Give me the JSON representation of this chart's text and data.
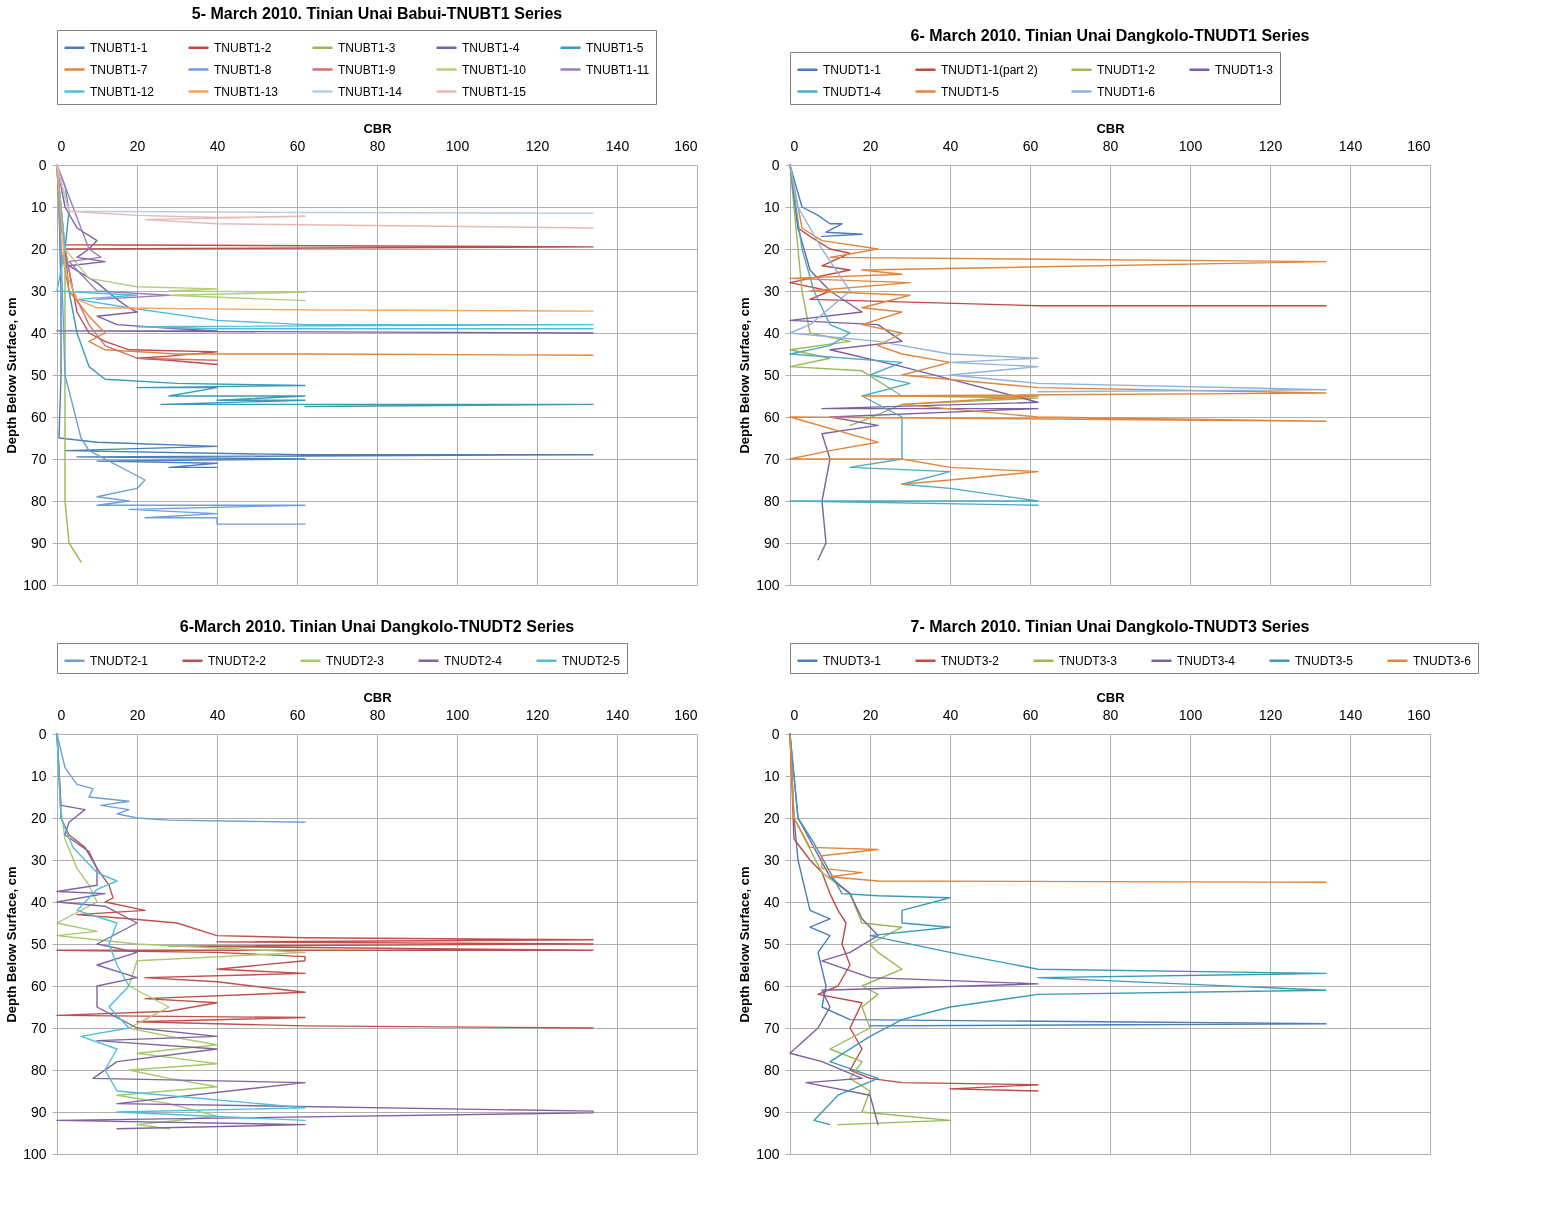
{
  "chart_data": [
    {
      "type": "line",
      "title": "5- March 2010. Tinian Unai Babui-TNUBT1 Series",
      "xlabel": "CBR",
      "ylabel": "Depth Below Surface, cm",
      "xlim": [
        0,
        160
      ],
      "xticks": [
        0,
        20,
        40,
        60,
        80,
        100,
        120,
        140,
        160
      ],
      "ylim": [
        100,
        0
      ],
      "yticks": [
        0,
        10,
        20,
        30,
        40,
        50,
        60,
        70,
        80,
        90,
        100
      ],
      "grid": true,
      "legend": "top",
      "series": [
        {
          "name": "TNUBT1-1",
          "color": "#4a7ebb",
          "x": [
            0,
            0.5,
            1,
            1,
            0.5,
            10,
            40,
            2,
            62,
            134,
            5,
            62,
            10,
            40,
            28,
            40
          ],
          "values": [
            0,
            10,
            30,
            50,
            65,
            66,
            67,
            68,
            69,
            69,
            69.5,
            70,
            70.5,
            71,
            72,
            72
          ]
        },
        {
          "name": "TNUBT1-2",
          "color": "#be4b48",
          "x": [
            0,
            1,
            2,
            134,
            2,
            3,
            5,
            8,
            12,
            18,
            40,
            28,
            20,
            28,
            40
          ],
          "values": [
            0,
            15,
            19,
            19.5,
            20,
            25,
            35,
            40,
            42,
            44,
            44.5,
            45.5,
            46,
            46.5,
            47.5
          ]
        },
        {
          "name": "TNUBT1-3",
          "color": "#98b954",
          "x": [
            0,
            1,
            2,
            2,
            2,
            2,
            3,
            6
          ],
          "values": [
            0,
            10,
            20,
            40,
            60,
            80,
            90,
            94.5
          ]
        },
        {
          "name": "TNUBT1-4",
          "color": "#7d60a0",
          "x": [
            0,
            2,
            5,
            10,
            8,
            5,
            12,
            3,
            10,
            15,
            18,
            20,
            10,
            15,
            30,
            40,
            0,
            134
          ],
          "values": [
            0,
            10,
            15,
            18,
            20,
            22,
            23,
            24,
            28,
            32,
            34,
            35,
            36,
            38,
            39,
            39.5,
            39.5,
            40
          ]
        },
        {
          "name": "TNUBT1-5",
          "color": "#3b9ab8",
          "x": [
            0,
            2,
            3,
            2,
            3,
            5,
            8,
            12,
            30,
            62,
            20,
            40,
            28,
            62,
            40,
            62,
            26,
            134,
            62
          ],
          "values": [
            0,
            5,
            11,
            20,
            30,
            40,
            48,
            51,
            52,
            52.5,
            53,
            53,
            55,
            55,
            56,
            56,
            57,
            57,
            57.5
          ]
        },
        {
          "name": "TNUBT1-7",
          "color": "#e0863e",
          "x": [
            0,
            1,
            3,
            8,
            10,
            12,
            8,
            12,
            30,
            62,
            134
          ],
          "values": [
            0,
            20,
            30,
            36,
            38,
            40,
            42,
            44,
            45,
            45,
            45.3
          ]
        },
        {
          "name": "TNUBT1-8",
          "color": "#6f9fd8",
          "x": [
            0,
            1,
            2,
            6,
            8,
            22,
            20,
            10,
            18,
            10,
            62,
            18,
            40,
            22,
            40,
            40,
            62
          ],
          "values": [
            0,
            20,
            50,
            65,
            68,
            75,
            77,
            79,
            80,
            81,
            81,
            82,
            83,
            84,
            84,
            85.5,
            85.5
          ]
        },
        {
          "name": "TNUBT1-9",
          "color": "#d0726f",
          "x": [
            0,
            2,
            4,
            8,
            12,
            20,
            40
          ],
          "values": [
            0,
            20,
            30,
            38,
            43,
            46,
            46.5
          ]
        },
        {
          "name": "TNUBT1-10",
          "color": "#b3cf80",
          "x": [
            0,
            2,
            8,
            20,
            40,
            28,
            62,
            28,
            62
          ],
          "values": [
            0,
            20,
            27,
            29,
            29.5,
            30,
            30.3,
            31,
            32.3
          ]
        },
        {
          "name": "TNUBT1-11",
          "color": "#9a7fba",
          "x": [
            0,
            8,
            11,
            3,
            5,
            10,
            28,
            10
          ],
          "values": [
            0,
            20,
            22,
            23,
            25,
            30,
            31,
            32
          ]
        },
        {
          "name": "TNUBT1-12",
          "color": "#4bc0dc",
          "x": [
            0,
            2,
            0,
            20,
            5,
            18,
            40,
            62,
            134,
            20,
            40,
            134
          ],
          "values": [
            0,
            20,
            30,
            31,
            32,
            34,
            37,
            38,
            38,
            38.5,
            39,
            39
          ]
        },
        {
          "name": "TNUBT1-13",
          "color": "#f9a35d",
          "x": [
            0,
            2,
            5,
            10,
            62,
            134
          ],
          "values": [
            0,
            25,
            32,
            34,
            34.5,
            34.8
          ]
        },
        {
          "name": "TNUBT1-14",
          "color": "#b9cde5",
          "x": [
            0,
            2,
            3,
            62,
            134
          ],
          "values": [
            0,
            8,
            11,
            11.3,
            11.5
          ]
        },
        {
          "name": "TNUBT1-15",
          "color": "#e6b9b8",
          "x": [
            0,
            3,
            20,
            40,
            62,
            22,
            40,
            134
          ],
          "values": [
            0,
            11,
            12,
            12.5,
            12.2,
            13,
            14,
            15
          ]
        }
      ]
    },
    {
      "type": "line",
      "title": "6- March 2010. Tinian Unai Dangkolo-TNUDT1 Series",
      "xlabel": "CBR",
      "ylabel": "Depth Below Surface, cm",
      "xlim": [
        0,
        160
      ],
      "xticks": [
        0,
        20,
        40,
        60,
        80,
        100,
        120,
        140,
        160
      ],
      "ylim": [
        100,
        0
      ],
      "yticks": [
        0,
        10,
        20,
        30,
        40,
        50,
        60,
        70,
        80,
        90,
        100
      ],
      "grid": true,
      "legend": "top",
      "series": [
        {
          "name": "TNUDT1-1",
          "color": "#4a7ebb",
          "x": [
            0,
            3,
            7,
            10,
            13,
            9,
            18,
            8
          ],
          "values": [
            0,
            10,
            12,
            14,
            14,
            16,
            16.5,
            17
          ]
        },
        {
          "name": "TNUDT1-1(part 2)",
          "color": "#be4b48",
          "x": [
            0,
            2,
            5,
            10,
            15,
            8,
            15,
            0,
            10,
            5,
            62,
            134
          ],
          "values": [
            0,
            15,
            17,
            20,
            21,
            24,
            25,
            28,
            30,
            32,
            33.5,
            33.5
          ]
        },
        {
          "name": "TNUDT1-2",
          "color": "#98b954",
          "x": [
            0,
            1,
            2,
            3,
            5,
            15,
            0,
            10,
            0,
            18,
            28,
            62,
            28,
            18,
            15
          ],
          "values": [
            0,
            10,
            20,
            30,
            40,
            42,
            44,
            46,
            48,
            49,
            55,
            55.5,
            57,
            61,
            62
          ]
        },
        {
          "name": "TNUDT1-3",
          "color": "#7d60a0",
          "x": [
            0,
            2,
            5,
            10,
            18,
            0,
            22,
            28,
            10,
            28,
            62,
            8,
            62,
            10,
            22,
            8,
            10,
            8,
            9,
            7
          ],
          "values": [
            0,
            15,
            25,
            30,
            35,
            37,
            38,
            42,
            44,
            48,
            56.5,
            58,
            58,
            60,
            62,
            64,
            70,
            80,
            90,
            94
          ]
        },
        {
          "name": "TNUDT1-4",
          "color": "#4bacc6",
          "x": [
            0,
            3,
            6,
            10,
            15,
            10,
            0,
            28,
            20,
            30,
            18,
            28,
            28,
            15,
            40,
            28,
            40,
            62,
            0,
            62
          ],
          "values": [
            0,
            20,
            30,
            38,
            40,
            43,
            45,
            47,
            50,
            52,
            55,
            60,
            70,
            72,
            73,
            76,
            77,
            80,
            80,
            81
          ]
        },
        {
          "name": "TNUDT1-5",
          "color": "#e0863e",
          "x": [
            0,
            3,
            8,
            22,
            10,
            134,
            18,
            28,
            0,
            30,
            5,
            30,
            18,
            28,
            18,
            28,
            22,
            28,
            40,
            28,
            62,
            134,
            18,
            62,
            28,
            62,
            134,
            0,
            22,
            10,
            0,
            28,
            40,
            62,
            40,
            28
          ],
          "values": [
            0,
            15,
            18,
            20,
            22,
            23,
            25,
            26,
            27,
            28,
            30,
            31,
            34,
            35,
            38,
            40,
            43,
            45,
            47,
            50,
            53,
            54.3,
            55,
            55,
            57,
            60,
            61,
            60,
            66,
            68,
            70,
            70,
            72,
            73,
            75,
            76
          ]
        },
        {
          "name": "TNUDT1-6",
          "color": "#93b3dc",
          "x": [
            0,
            2,
            8,
            15,
            5,
            0,
            22,
            40,
            62,
            40,
            62,
            40,
            62,
            134,
            62
          ],
          "values": [
            0,
            10,
            20,
            30,
            38,
            40,
            42,
            45,
            46,
            47,
            48,
            50,
            52,
            53.5,
            54
          ]
        }
      ]
    },
    {
      "type": "line",
      "title": "6-March 2010. Tinian Unai Dangkolo-TNUDT2 Series",
      "xlabel": "CBR",
      "ylabel": "Depth Below Surface, cm",
      "xlim": [
        0,
        160
      ],
      "xticks": [
        0,
        20,
        40,
        60,
        80,
        100,
        120,
        140,
        160
      ],
      "ylim": [
        100,
        0
      ],
      "yticks": [
        0,
        10,
        20,
        30,
        40,
        50,
        60,
        70,
        80,
        90,
        100
      ],
      "grid": true,
      "legend": "top",
      "series": [
        {
          "name": "TNUDT2-1",
          "color": "#6f9fd8",
          "x": [
            0,
            2,
            5,
            9,
            8,
            18,
            11,
            18,
            15,
            20,
            28,
            62
          ],
          "values": [
            0,
            8,
            12,
            13,
            15,
            16,
            17,
            18,
            19,
            20,
            20.5,
            21
          ]
        },
        {
          "name": "TNUDT2-2",
          "color": "#c0504d",
          "x": [
            0,
            1,
            3,
            7,
            10,
            13,
            14,
            12,
            22,
            5,
            18,
            30,
            40,
            62,
            134,
            40,
            134,
            28,
            134,
            0,
            40,
            62,
            62,
            40,
            62,
            22,
            40,
            62,
            22,
            40,
            28,
            0,
            62,
            20,
            62,
            134
          ],
          "values": [
            0,
            20,
            24,
            27,
            32,
            36,
            39,
            40,
            42,
            43,
            44,
            45,
            48,
            48.5,
            49,
            49.5,
            50,
            50.5,
            51.5,
            51.5,
            52,
            53,
            54,
            56,
            57,
            58,
            59,
            61.5,
            63,
            64,
            66,
            67,
            67.5,
            68.5,
            69.5,
            70
          ]
        },
        {
          "name": "TNUDT2-3",
          "color": "#a6c96a",
          "x": [
            0,
            1,
            2,
            5,
            8,
            10,
            0,
            10,
            0,
            20,
            62,
            20,
            18,
            28,
            18,
            28,
            40,
            20,
            28,
            40,
            18,
            28,
            40,
            15,
            28,
            40,
            20,
            28
          ],
          "values": [
            0,
            18,
            25,
            32,
            36,
            40,
            45,
            47,
            48,
            50,
            52,
            54,
            60,
            65,
            70,
            72,
            74,
            76,
            77,
            78.5,
            80,
            82,
            84,
            86,
            88,
            91,
            93,
            94
          ]
        },
        {
          "name": "TNUDT2-4",
          "color": "#8064a2",
          "x": [
            0,
            1,
            7,
            3,
            2,
            8,
            10,
            10,
            0,
            12,
            0,
            12,
            20,
            10,
            20,
            10,
            20,
            10,
            10,
            20,
            40,
            10,
            40,
            15,
            9,
            62,
            15,
            134,
            134,
            0,
            62,
            15
          ],
          "values": [
            0,
            17,
            18,
            21,
            24,
            28,
            32,
            36,
            37.5,
            38,
            40,
            41,
            45,
            50,
            52,
            55,
            58,
            60,
            65,
            70,
            72,
            73,
            75,
            78,
            82,
            83,
            88,
            89.8,
            90.2,
            92,
            93,
            94
          ]
        },
        {
          "name": "TNUDT2-5",
          "color": "#4bc0dc",
          "x": [
            0,
            1,
            4,
            10,
            15,
            10,
            5,
            15,
            13,
            15,
            18,
            13,
            18,
            6,
            15,
            12,
            15,
            62,
            15,
            62
          ],
          "values": [
            0,
            20,
            27,
            33,
            35,
            37,
            42,
            45,
            50,
            55,
            60,
            65,
            70,
            72,
            75,
            80,
            85,
            89,
            90,
            92
          ]
        }
      ]
    },
    {
      "type": "line",
      "title": "7- March 2010. Tinian Unai Dangkolo-TNUDT3 Series",
      "xlabel": "CBR",
      "ylabel": "Depth Below Surface, cm",
      "xlim": [
        0,
        160
      ],
      "xticks": [
        0,
        20,
        40,
        60,
        80,
        100,
        120,
        140,
        160
      ],
      "ylim": [
        100,
        0
      ],
      "yticks": [
        0,
        10,
        20,
        30,
        40,
        50,
        60,
        70,
        80,
        90,
        100
      ],
      "grid": true,
      "legend": "top",
      "series": [
        {
          "name": "TNUDT3-1",
          "color": "#4a7ebb",
          "x": [
            0,
            1,
            2,
            4,
            5,
            10,
            5,
            10,
            7,
            9,
            8,
            15,
            134,
            20
          ],
          "values": [
            0,
            20,
            30,
            38,
            42,
            44,
            46,
            48,
            52,
            60,
            65,
            68,
            69,
            69.5
          ]
        },
        {
          "name": "TNUDT3-2",
          "color": "#be4b48",
          "x": [
            0,
            1,
            5,
            8,
            10,
            12,
            14,
            13,
            15,
            12,
            7,
            18,
            15,
            18,
            15,
            20,
            28,
            62,
            40,
            62
          ],
          "values": [
            0,
            25,
            30,
            33,
            38,
            42,
            45,
            50,
            55,
            60,
            62,
            64,
            70,
            75,
            80,
            82,
            83,
            83.5,
            84.5,
            85
          ]
        },
        {
          "name": "TNUDT3-3",
          "color": "#98b954",
          "x": [
            0,
            1,
            8,
            15,
            18,
            28,
            20,
            22,
            28,
            18,
            22,
            18,
            20,
            10,
            18,
            15,
            20,
            18,
            40,
            12
          ],
          "values": [
            0,
            20,
            33,
            38,
            45,
            46,
            50,
            52,
            56,
            60,
            62,
            65,
            70,
            75,
            78,
            82,
            85,
            90,
            92,
            93
          ]
        },
        {
          "name": "TNUDT3-4",
          "color": "#7d60a0",
          "x": [
            0,
            2,
            10,
            15,
            18,
            22,
            15,
            8,
            20,
            62,
            8,
            10,
            7,
            0,
            8,
            18,
            4,
            20,
            22
          ],
          "values": [
            0,
            20,
            34,
            38,
            44,
            48,
            52,
            54,
            58,
            59.5,
            61,
            65,
            70,
            76,
            78,
            82,
            83,
            86,
            93
          ]
        },
        {
          "name": "TNUDT3-5",
          "color": "#3b9ab8",
          "x": [
            0,
            2,
            6,
            13,
            22,
            40,
            28,
            28,
            40,
            20,
            40,
            62,
            134,
            62,
            134,
            62,
            40,
            28,
            20,
            10,
            22,
            12,
            6,
            10
          ],
          "values": [
            0,
            20,
            26,
            38,
            38.5,
            39,
            42,
            45,
            46,
            48,
            52,
            56,
            57,
            58,
            61,
            62,
            65,
            68,
            72,
            78,
            82,
            86,
            92,
            93
          ]
        },
        {
          "name": "TNUDT3-6",
          "color": "#e0863e",
          "x": [
            0,
            1,
            5,
            22,
            8,
            8,
            18,
            10,
            22,
            134
          ],
          "values": [
            0,
            20,
            27,
            27.5,
            29,
            32,
            33,
            34,
            35,
            35.3
          ]
        }
      ]
    }
  ]
}
